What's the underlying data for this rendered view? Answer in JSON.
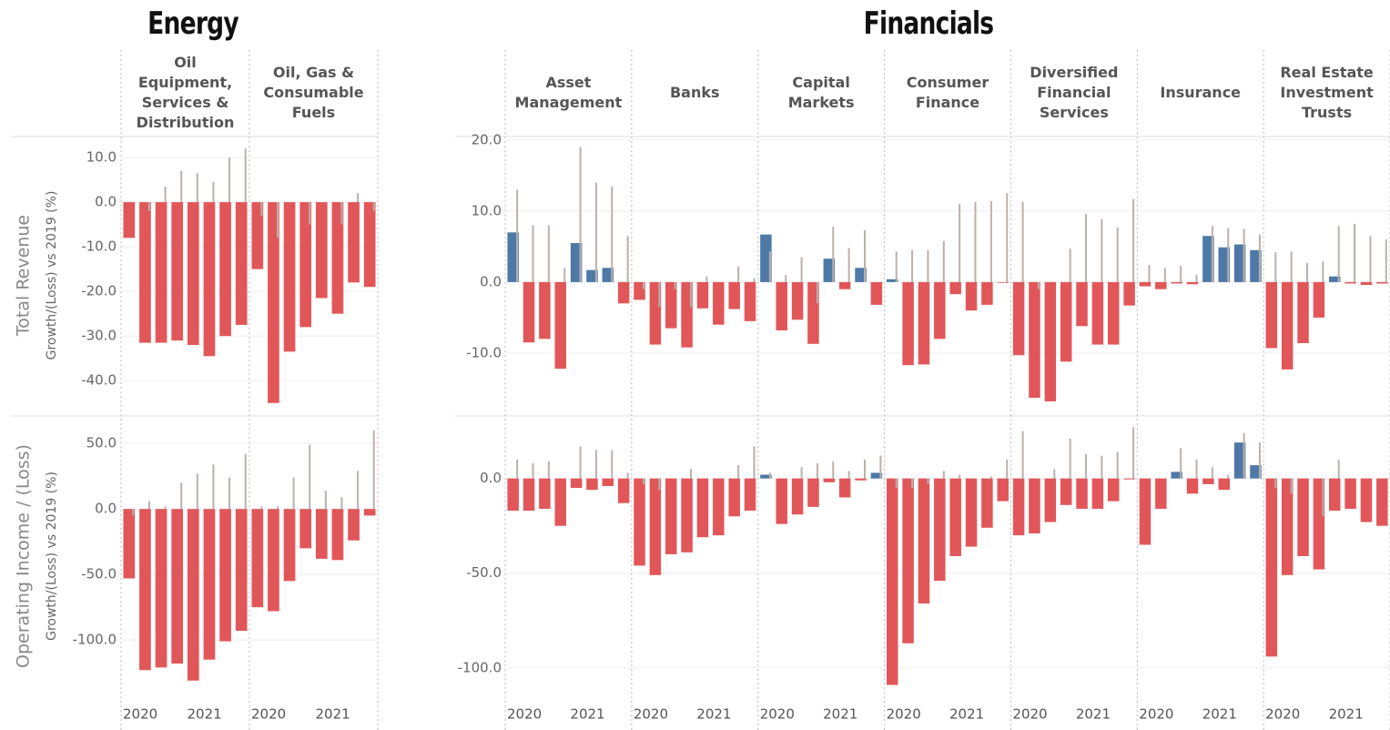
{
  "chart_data": [
    {
      "type": "bar",
      "title": "Energy",
      "categories": [
        "2020",
        null,
        null,
        null,
        "2021",
        null,
        null,
        null
      ],
      "colors": {
        "gain": "#4e79a7",
        "loss": "#e15759",
        "reference": "#bab0ac"
      },
      "rows": [
        {
          "label": "Total Revenue",
          "sublabel": "Growth/(Loss) vs 2019 (%)",
          "ylim": [
            -47.5,
            14.7
          ],
          "yticks": [
            {
              "value": 10,
              "label": "10.0"
            },
            {
              "value": 0,
              "label": "0.0"
            },
            {
              "value": -10,
              "label": "-10.0"
            },
            {
              "value": -20,
              "label": "-20.0"
            },
            {
              "value": -30,
              "label": "-30.0"
            },
            {
              "value": -40,
              "label": "-40.0"
            }
          ]
        },
        {
          "label": "Operating Income / (Loss)",
          "sublabel": "Growth/(Loss) vs 2019 (%)",
          "ylim": [
            -143,
            71
          ],
          "yticks": [
            {
              "value": 50,
              "label": "50.0"
            },
            {
              "value": 0,
              "label": "0.0"
            },
            {
              "value": -50,
              "label": "-50.0"
            },
            {
              "value": -100,
              "label": "-100.0"
            }
          ]
        }
      ],
      "panels": [
        {
          "name": "Oil Equipment, Services & Distribution",
          "rows": [
            {
              "values": [
                -8,
                -31.5,
                -31.5,
                -31,
                -32,
                -34.5,
                -30,
                -27.5
              ],
              "reference": [
                0,
                -2,
                3.5,
                7,
                6.5,
                4.5,
                10,
                12
              ]
            },
            {
              "values": [
                -53,
                -123,
                -121,
                -118,
                -131,
                -115,
                -101,
                -93
              ],
              "reference": [
                -5,
                6,
                2,
                20,
                27,
                34,
                24,
                42
              ]
            }
          ]
        },
        {
          "name": "Oil, Gas & Consumable Fuels",
          "rows": [
            {
              "values": [
                -15,
                -45,
                -33.5,
                -28,
                -21.5,
                -25,
                -18,
                -19
              ],
              "reference": [
                -3,
                -8,
                0,
                -5,
                0,
                -5,
                2,
                -2
              ]
            },
            {
              "values": [
                -75,
                -78,
                -55,
                -30,
                -38,
                -39,
                -24,
                -5
              ],
              "reference": [
                2,
                2,
                24,
                49,
                14,
                9,
                29,
                60
              ]
            }
          ]
        }
      ]
    },
    {
      "type": "bar",
      "title": "Financials",
      "categories": [
        "2020",
        null,
        null,
        null,
        "2021",
        null,
        null,
        null
      ],
      "colors": {
        "gain": "#4e79a7",
        "loss": "#e15759",
        "reference": "#bab0ac"
      },
      "rows": [
        {
          "ylim": [
            -18.6,
            20.5
          ],
          "yticks": [
            {
              "value": 20,
              "label": "20.0"
            },
            {
              "value": 10,
              "label": "10.0"
            },
            {
              "value": 0,
              "label": "0.0"
            },
            {
              "value": -10,
              "label": "-10.0"
            }
          ]
        },
        {
          "ylim": [
            -115,
            33
          ],
          "yticks": [
            {
              "value": 0,
              "label": "0.0"
            },
            {
              "value": -50,
              "label": "-50.0"
            },
            {
              "value": -100,
              "label": "-100.0"
            }
          ]
        }
      ],
      "panels": [
        {
          "name": "Asset Management",
          "rows": [
            {
              "values": [
                7,
                -8.5,
                -8,
                -12.2,
                5.5,
                1.7,
                2,
                -3
              ],
              "reference": [
                13,
                8,
                8,
                2,
                19,
                14,
                13.5,
                6.5
              ]
            },
            {
              "values": [
                -17,
                -17,
                -16,
                -25,
                -5,
                -6,
                -4,
                -13
              ],
              "reference": [
                10,
                8,
                9,
                0,
                17,
                15,
                15,
                3
              ]
            }
          ]
        },
        {
          "name": "Banks",
          "rows": [
            {
              "values": [
                -2.5,
                -8.8,
                -6.5,
                -9.2,
                -3.7,
                -6,
                -3.8,
                -5.5
              ],
              "reference": [
                -1,
                -3.5,
                -1,
                -3.5,
                0.8,
                0,
                2.2,
                0.5
              ]
            },
            {
              "values": [
                -46,
                -51,
                -40,
                -39,
                -31,
                -30,
                -20,
                -17
              ],
              "reference": [
                -3,
                -6,
                0,
                5,
                0,
                0,
                7,
                17
              ]
            }
          ]
        },
        {
          "name": "Capital Markets",
          "rows": [
            {
              "values": [
                6.7,
                -6.8,
                -5.3,
                -8.7,
                3.3,
                -1,
                2,
                -3.2
              ],
              "reference": [
                4.3,
                1,
                3.5,
                -3,
                7.8,
                4.8,
                7.3,
                0
              ]
            },
            {
              "values": [
                2,
                -24,
                -19,
                -15,
                -2,
                -10,
                -1,
                3
              ],
              "reference": [
                3,
                0,
                6,
                8,
                9,
                4,
                10,
                12
              ]
            }
          ]
        },
        {
          "name": "Consumer Finance",
          "rows": [
            {
              "values": [
                0.4,
                -11.7,
                -11.6,
                -8,
                -1.7,
                -4,
                -3.2,
                -0.1
              ],
              "reference": [
                4.3,
                4.5,
                4.5,
                5.8,
                11,
                11.3,
                11.4,
                12.5
              ]
            },
            {
              "values": [
                -109,
                -87,
                -66,
                -54,
                -41,
                -36,
                -26,
                -12
              ],
              "reference": [
                -5,
                -5,
                -3,
                4,
                2,
                0,
                1,
                10
              ]
            }
          ]
        },
        {
          "name": "Diversified Financial Services",
          "rows": [
            {
              "values": [
                -10.3,
                -16.3,
                -16.8,
                -11.2,
                -6.2,
                -8.8,
                -8.8,
                -3.3
              ],
              "reference": [
                11.3,
                -1,
                0,
                4.7,
                9.6,
                8.9,
                7.7,
                11.7
              ]
            },
            {
              "values": [
                -30,
                -29,
                -23,
                -14,
                -16,
                -16,
                -12,
                -0.5
              ],
              "reference": [
                25,
                0,
                5,
                21,
                13,
                12,
                14,
                27
              ]
            }
          ]
        },
        {
          "name": "Insurance",
          "rows": [
            {
              "values": [
                -0.6,
                -1,
                -0.2,
                -0.3,
                6.5,
                4.9,
                5.3,
                4.5
              ],
              "reference": [
                2.4,
                2,
                2.3,
                1,
                7.9,
                7.6,
                7.5,
                6.7
              ]
            },
            {
              "values": [
                -35,
                -16,
                3.5,
                -8,
                -3,
                -6,
                19,
                7
              ],
              "reference": [
                0,
                0,
                16,
                10,
                6,
                2,
                24,
                19
              ]
            }
          ]
        },
        {
          "name": "Real Estate Investment Trusts",
          "rows": [
            {
              "values": [
                -9.3,
                -12.3,
                -8.6,
                -5,
                0.8,
                -0.2,
                -0.4,
                -0.2
              ],
              "reference": [
                4.2,
                4.3,
                2.7,
                2.9,
                7.9,
                8.2,
                6.5,
                6
              ]
            },
            {
              "values": [
                -94,
                -51,
                -41,
                -48,
                -17,
                -16,
                -23,
                -25
              ],
              "reference": [
                -5,
                -8,
                0,
                -20,
                10,
                0,
                0,
                0
              ]
            }
          ]
        }
      ]
    }
  ]
}
